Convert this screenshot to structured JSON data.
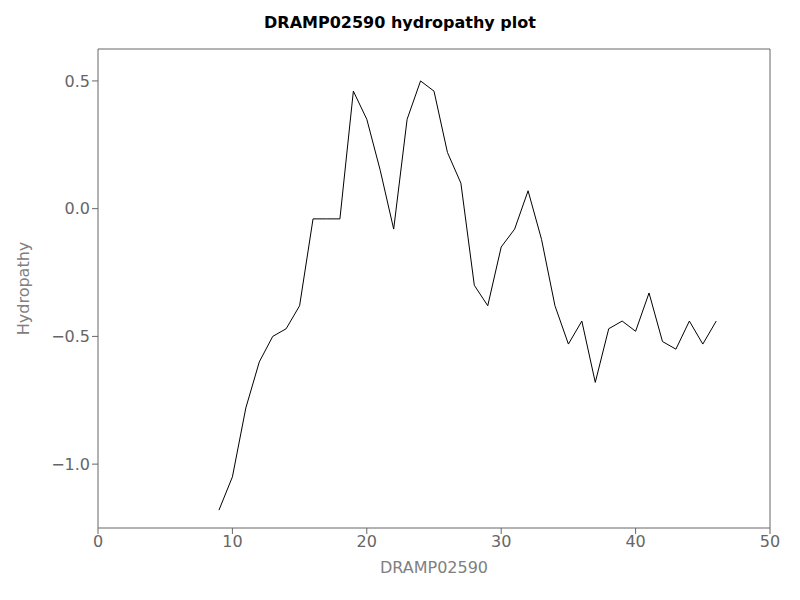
{
  "chart_data": {
    "type": "line",
    "title": "DRAMP02590 hydropathy plot",
    "xlabel": "DRAMP02590",
    "ylabel": "Hydropathy",
    "xlim": [
      0,
      50
    ],
    "ylim": [
      -1.25,
      0.625
    ],
    "xticks": [
      0,
      10,
      20,
      30,
      40,
      50
    ],
    "yticks": [
      {
        "value": -1.0,
        "label": "−1.0"
      },
      {
        "value": -0.5,
        "label": "−0.5"
      },
      {
        "value": 0.0,
        "label": "0.0"
      },
      0.5
    ],
    "color": "#000000",
    "grid": false,
    "x": [
      9,
      10,
      11,
      12,
      13,
      14,
      15,
      16,
      17,
      18,
      19,
      20,
      21,
      22,
      23,
      24,
      25,
      26,
      27,
      28,
      29,
      30,
      31,
      32,
      33,
      34,
      35,
      36,
      37,
      38,
      39,
      40,
      41,
      42,
      43,
      44,
      45,
      46
    ],
    "values": [
      -1.18,
      -1.05,
      -0.78,
      -0.6,
      -0.5,
      -0.47,
      -0.38,
      -0.04,
      -0.04,
      -0.04,
      0.46,
      0.35,
      0.15,
      -0.08,
      0.35,
      0.5,
      0.46,
      0.22,
      0.1,
      -0.3,
      -0.38,
      -0.15,
      -0.08,
      0.07,
      -0.12,
      -0.38,
      -0.53,
      -0.44,
      -0.68,
      -0.47,
      -0.44,
      -0.48,
      -0.33,
      -0.52,
      -0.55,
      -0.44,
      -0.53,
      -0.44
    ]
  }
}
